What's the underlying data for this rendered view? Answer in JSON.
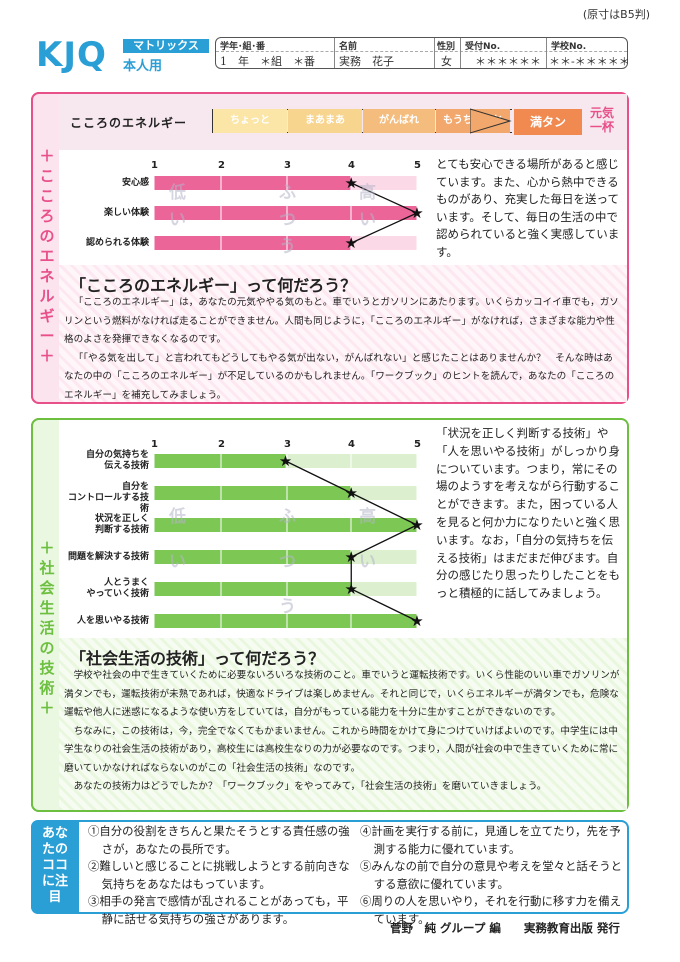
{
  "page": {
    "size_note": "(原寸はB5判)"
  },
  "header": {
    "logo": "KJQ",
    "brand": "マトリックス",
    "subtitle": "本人用",
    "fields": [
      {
        "label": "学年･組･番",
        "value": "1　年　＊組　＊番"
      },
      {
        "label": "名前",
        "value": "実務　花子"
      },
      {
        "label": "性別",
        "value": "女"
      },
      {
        "label": "受付No.",
        "value": "＊＊＊＊＊＊"
      },
      {
        "label": "学校No.",
        "value": "＊＊-＊＊＊＊＊"
      }
    ]
  },
  "section1": {
    "side_title": "＋こころのエネルギー＋",
    "energy_label": "こころのエネルギー",
    "energy_steps": [
      "ちょっと",
      "まあまあ",
      "がんばれ",
      "もうちょっと",
      "満タン"
    ],
    "energy_max": "元気一杯",
    "chart": {
      "ticks": [
        "1",
        "2",
        "3",
        "4",
        "5"
      ],
      "bands": [
        "低い",
        "ふつう",
        "高い"
      ],
      "rows": [
        {
          "label": "安心感",
          "value": 4
        },
        {
          "label": "楽しい体験",
          "value": 5
        },
        {
          "label": "認められる体験",
          "value": 4
        }
      ]
    },
    "comment": "とても安心できる場所があると感じています。また、心から熱中できるものがあり、充実した毎日を送っています。そして、毎日の生活の中で認められていると強く実感しています。",
    "explain_title": "「こころのエネルギー」って何だろう？",
    "explain_paragraphs": [
      "「こころのエネルギー」は，あなたの元気ややる気のもと。車でいうとガソリンにあたります。いくらカッコイイ車でも，ガソリンという燃料がなければ走ることができません。人間も同じように，「こころのエネルギー」がなければ，さまざまな能力や性格のよさを発揮できなくなるのです。",
      "「「やる気を出して」と言われてもどうしてもやる気が出ない，がんばれない」と感じたことはありませんか？　そんな時はあなたの中の「こころのエネルギー」が不足しているのかもしれません。「ワークブック」のヒントを読んで，あなたの「こころのエネルギー」を補充してみましょう。"
    ]
  },
  "section2": {
    "side_title": "＋社会生活の技術＋",
    "chart": {
      "ticks": [
        "1",
        "2",
        "3",
        "4",
        "5"
      ],
      "bands": [
        "低い",
        "ふつう",
        "高い"
      ],
      "rows": [
        {
          "label": "自分の気持ちを伝える技術",
          "value": 3
        },
        {
          "label": "自分をコントロールする技術",
          "value": 4
        },
        {
          "label": "状況を正しく判断する技術",
          "value": 5
        },
        {
          "label": "問題を解決する技術",
          "value": 4
        },
        {
          "label": "人とうまくやっていく技術",
          "value": 4
        },
        {
          "label": "人を思いやる技術",
          "value": 5
        }
      ]
    },
    "comment": "「状況を正しく判断する技術」や「人を思いやる技術」がしっかり身についています。つまり，常にその場のようすを考えながら行動することができます。また，困っている人を見ると何か力になりたいと強く思います。なお，「自分の気持ちを伝える技術」はまだまだ伸びます。自分の感じたり思ったりしたことをもっと積極的に話してみましょう。",
    "explain_title": "「社会生活の技術」って何だろう？",
    "explain_paragraphs": [
      "学校や社会の中で生きていくために必要ないろいろな技術のこと。車でいうと運転技術です。いくら性能のいい車でガソリンが満タンでも，運転技術が未熟であれば，快適なドライブは楽しめません。それと同じで，いくらエネルギーが満タンでも，危険な運転や他人に迷惑になるような使い方をしていては，自分がもっている能力を十分に生かすことができないのです。",
      "ちなみに，この技術は，今，完全でなくてもかまいません。これから時間をかけて身につけていけばよいのです。中学生には中学生なりの社会生活の技術があり，高校生には高校生なりの力が必要なのです。つまり，人間が社会の中で生きていくために常に磨いていかなければならないのがこの「社会生活の技術」なのです。",
      "あなたの技術力はどうでしたか？「ワークブック」をやってみて，「社会生活の技術」を磨いていきましょう。"
    ]
  },
  "section3": {
    "side_title": "あなたのココに注目",
    "left_points": [
      "①自分の役割をきちんと果たそうとする責任感の強さが，あなたの長所です。",
      "②難しいと感じることに挑戦しようとする前向きな気持ちをあなたはもっています。",
      "③相手の発言で感情が乱されることがあっても，平静に話せる気持ちの強さがあります。"
    ],
    "right_points": [
      "④計画を実行する前に，見通しを立てたり，先を予測する能力に優れています。",
      "⑤みんなの前で自分の意見や考えを堂々と話そうとする意欲に優れています。",
      "⑥周りの人を思いやり，それを行動に移す力を備えています。"
    ]
  },
  "footer": {
    "text": "菅野　純 グループ 編　　実務教育出版 発行"
  },
  "colors": {
    "pink": "#e8508a",
    "green": "#6cbf3f",
    "blue": "#2a9fd6",
    "orange": "#f08a50"
  }
}
